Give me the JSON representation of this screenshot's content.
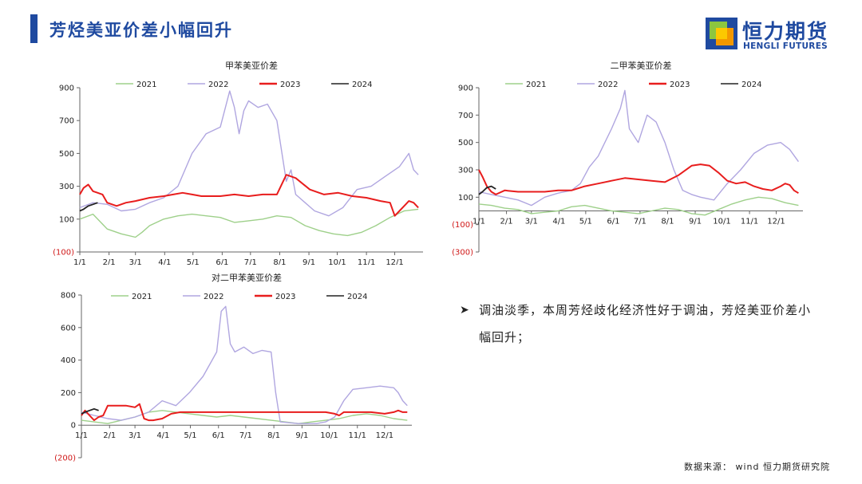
{
  "page": {
    "title": "芳烃美亚价差小幅回升",
    "logo_cn": "恒力期货",
    "logo_en": "HENGLI FUTURES",
    "bullet": "调油淡季，本周芳烃歧化经济性好于调油，芳烃美亚价差小幅回升；",
    "source": "数据来源： wind 恒力期货研究院"
  },
  "colors": {
    "brand": "#1f4aa0",
    "logo_orange": "#f39800",
    "logo_green": "#8cc63f",
    "logo_yellow": "#fcc800"
  },
  "chart_data": [
    {
      "type": "line",
      "title": "甲苯美亚价差",
      "xlabel": "",
      "ylabel": "",
      "x_ticks": [
        "1/1",
        "2/1",
        "3/1",
        "4/1",
        "5/1",
        "6/1",
        "7/1",
        "8/1",
        "9/1",
        "10/1",
        "11/1",
        "12/1"
      ],
      "y_ticks": [
        "900",
        "700",
        "500",
        "300",
        "100",
        "(100)"
      ],
      "ylim": [
        -100,
        900
      ],
      "legend": "top",
      "series": [
        {
          "name": "2021",
          "color": "#9ed08a",
          "x": [
            1,
            15,
            30,
            45,
            60,
            67,
            75,
            90,
            105,
            120,
            135,
            150,
            165,
            180,
            195,
            210,
            225,
            240,
            255,
            270,
            285,
            300,
            315,
            330,
            345,
            360
          ],
          "y": [
            100,
            130,
            40,
            10,
            -10,
            20,
            60,
            100,
            120,
            130,
            120,
            110,
            80,
            90,
            100,
            120,
            110,
            60,
            30,
            10,
            0,
            20,
            60,
            110,
            150,
            160
          ]
        },
        {
          "name": "2022",
          "color": "#b0a6e0",
          "x": [
            1,
            15,
            30,
            45,
            60,
            75,
            90,
            105,
            120,
            135,
            150,
            160,
            165,
            170,
            175,
            180,
            190,
            200,
            210,
            220,
            225,
            230,
            240,
            250,
            265,
            280,
            295,
            310,
            325,
            340,
            350,
            355,
            360
          ],
          "y": [
            170,
            200,
            190,
            150,
            160,
            200,
            230,
            300,
            500,
            620,
            660,
            880,
            780,
            620,
            760,
            820,
            780,
            800,
            700,
            330,
            400,
            250,
            200,
            150,
            120,
            170,
            280,
            300,
            360,
            420,
            500,
            400,
            370
          ]
        },
        {
          "name": "2023",
          "color": "#e81d1d",
          "x": [
            1,
            5,
            10,
            15,
            20,
            25,
            30,
            40,
            50,
            60,
            75,
            90,
            100,
            110,
            120,
            130,
            140,
            150,
            165,
            180,
            195,
            210,
            220,
            230,
            245,
            260,
            275,
            290,
            305,
            320,
            330,
            335,
            340,
            345,
            350,
            355,
            360
          ],
          "y": [
            250,
            290,
            310,
            270,
            260,
            250,
            200,
            180,
            200,
            210,
            230,
            240,
            250,
            260,
            250,
            240,
            240,
            240,
            250,
            240,
            250,
            250,
            370,
            350,
            280,
            250,
            260,
            240,
            230,
            210,
            200,
            120,
            150,
            180,
            210,
            200,
            170
          ]
        },
        {
          "name": "2024",
          "color": "#222222",
          "x": [
            1,
            5,
            10,
            15,
            20
          ],
          "y": [
            150,
            160,
            180,
            190,
            200
          ]
        }
      ]
    },
    {
      "type": "line",
      "title": "二甲苯美亚价差",
      "xlabel": "",
      "ylabel": "",
      "x_ticks": [
        "1/1",
        "2/1",
        "3/1",
        "4/1",
        "5/1",
        "6/1",
        "7/1",
        "8/1",
        "9/1",
        "10/1",
        "11/1",
        "12/1"
      ],
      "y_ticks": [
        "900",
        "700",
        "500",
        "300",
        "100",
        "(100)",
        "(300)"
      ],
      "ylim": [
        -300,
        900
      ],
      "legend": "top",
      "series": [
        {
          "name": "2021",
          "color": "#9ed08a",
          "x": [
            1,
            15,
            30,
            45,
            60,
            75,
            90,
            105,
            120,
            135,
            150,
            165,
            180,
            195,
            210,
            225,
            240,
            255,
            270,
            285,
            300,
            315,
            330,
            345,
            360
          ],
          "y": [
            50,
            40,
            20,
            10,
            -20,
            -10,
            0,
            30,
            40,
            20,
            0,
            -10,
            -20,
            0,
            20,
            10,
            -20,
            -30,
            10,
            50,
            80,
            100,
            90,
            60,
            40
          ]
        },
        {
          "name": "2022",
          "color": "#b0a6e0",
          "x": [
            1,
            15,
            30,
            45,
            60,
            75,
            90,
            105,
            115,
            125,
            135,
            150,
            160,
            165,
            170,
            180,
            190,
            200,
            210,
            220,
            230,
            240,
            250,
            265,
            280,
            295,
            310,
            325,
            340,
            350,
            360
          ],
          "y": [
            140,
            120,
            100,
            80,
            40,
            100,
            130,
            150,
            200,
            320,
            400,
            600,
            750,
            880,
            600,
            500,
            700,
            650,
            500,
            300,
            150,
            120,
            100,
            80,
            200,
            300,
            420,
            480,
            500,
            450,
            360
          ]
        },
        {
          "name": "2023",
          "color": "#e81d1d",
          "x": [
            1,
            5,
            10,
            15,
            20,
            30,
            45,
            60,
            75,
            90,
            105,
            120,
            135,
            150,
            165,
            180,
            195,
            210,
            225,
            240,
            250,
            260,
            270,
            280,
            290,
            300,
            310,
            320,
            330,
            340,
            345,
            350,
            355,
            360
          ],
          "y": [
            300,
            250,
            180,
            140,
            120,
            150,
            140,
            140,
            140,
            150,
            150,
            180,
            200,
            220,
            240,
            230,
            220,
            210,
            260,
            330,
            340,
            330,
            280,
            220,
            200,
            210,
            180,
            160,
            150,
            180,
            200,
            190,
            150,
            130
          ]
        },
        {
          "name": "2024",
          "color": "#222222",
          "x": [
            1,
            5,
            10,
            15,
            20
          ],
          "y": [
            120,
            140,
            170,
            180,
            160
          ]
        }
      ]
    },
    {
      "type": "line",
      "title": "对二甲苯美亚价差",
      "xlabel": "",
      "ylabel": "",
      "x_ticks": [
        "1/1",
        "2/1",
        "3/1",
        "4/1",
        "5/1",
        "6/1",
        "7/1",
        "8/1",
        "9/1",
        "10/1",
        "11/1",
        "12/1"
      ],
      "y_ticks": [
        "800",
        "600",
        "400",
        "200",
        "0",
        "(200)"
      ],
      "ylim": [
        -200,
        800
      ],
      "legend": "top",
      "series": [
        {
          "name": "2021",
          "color": "#9ed08a",
          "x": [
            1,
            15,
            30,
            45,
            60,
            75,
            90,
            105,
            120,
            135,
            150,
            165,
            180,
            195,
            210,
            225,
            240,
            255,
            270,
            285,
            300,
            315,
            330,
            345,
            360
          ],
          "y": [
            30,
            20,
            10,
            30,
            50,
            80,
            90,
            80,
            70,
            60,
            50,
            60,
            50,
            40,
            30,
            20,
            10,
            20,
            30,
            40,
            60,
            70,
            60,
            40,
            30
          ]
        },
        {
          "name": "2022",
          "color": "#b0a6e0",
          "x": [
            1,
            15,
            30,
            45,
            60,
            75,
            90,
            105,
            120,
            135,
            145,
            150,
            155,
            160,
            165,
            170,
            180,
            190,
            200,
            210,
            215,
            220,
            240,
            260,
            270,
            280,
            290,
            300,
            315,
            330,
            345,
            350,
            355,
            360
          ],
          "y": [
            80,
            60,
            40,
            30,
            50,
            80,
            150,
            120,
            200,
            300,
            400,
            450,
            700,
            730,
            500,
            450,
            480,
            440,
            460,
            450,
            200,
            20,
            10,
            10,
            20,
            50,
            150,
            220,
            230,
            240,
            230,
            200,
            150,
            120
          ]
        },
        {
          "name": "2023",
          "color": "#e81d1d",
          "x": [
            1,
            5,
            10,
            15,
            20,
            25,
            30,
            40,
            50,
            60,
            65,
            70,
            75,
            80,
            90,
            100,
            110,
            120,
            135,
            150,
            165,
            180,
            195,
            210,
            225,
            240,
            255,
            270,
            280,
            285,
            290,
            305,
            320,
            335,
            345,
            350,
            355,
            360
          ],
          "y": [
            60,
            90,
            60,
            30,
            50,
            60,
            120,
            120,
            120,
            110,
            130,
            40,
            30,
            30,
            40,
            70,
            80,
            80,
            80,
            80,
            80,
            80,
            80,
            80,
            80,
            80,
            80,
            80,
            70,
            60,
            80,
            80,
            80,
            70,
            80,
            90,
            80,
            80
          ]
        },
        {
          "name": "2024",
          "color": "#222222",
          "x": [
            1,
            5,
            10,
            15,
            20
          ],
          "y": [
            70,
            80,
            90,
            100,
            90
          ]
        }
      ]
    }
  ]
}
